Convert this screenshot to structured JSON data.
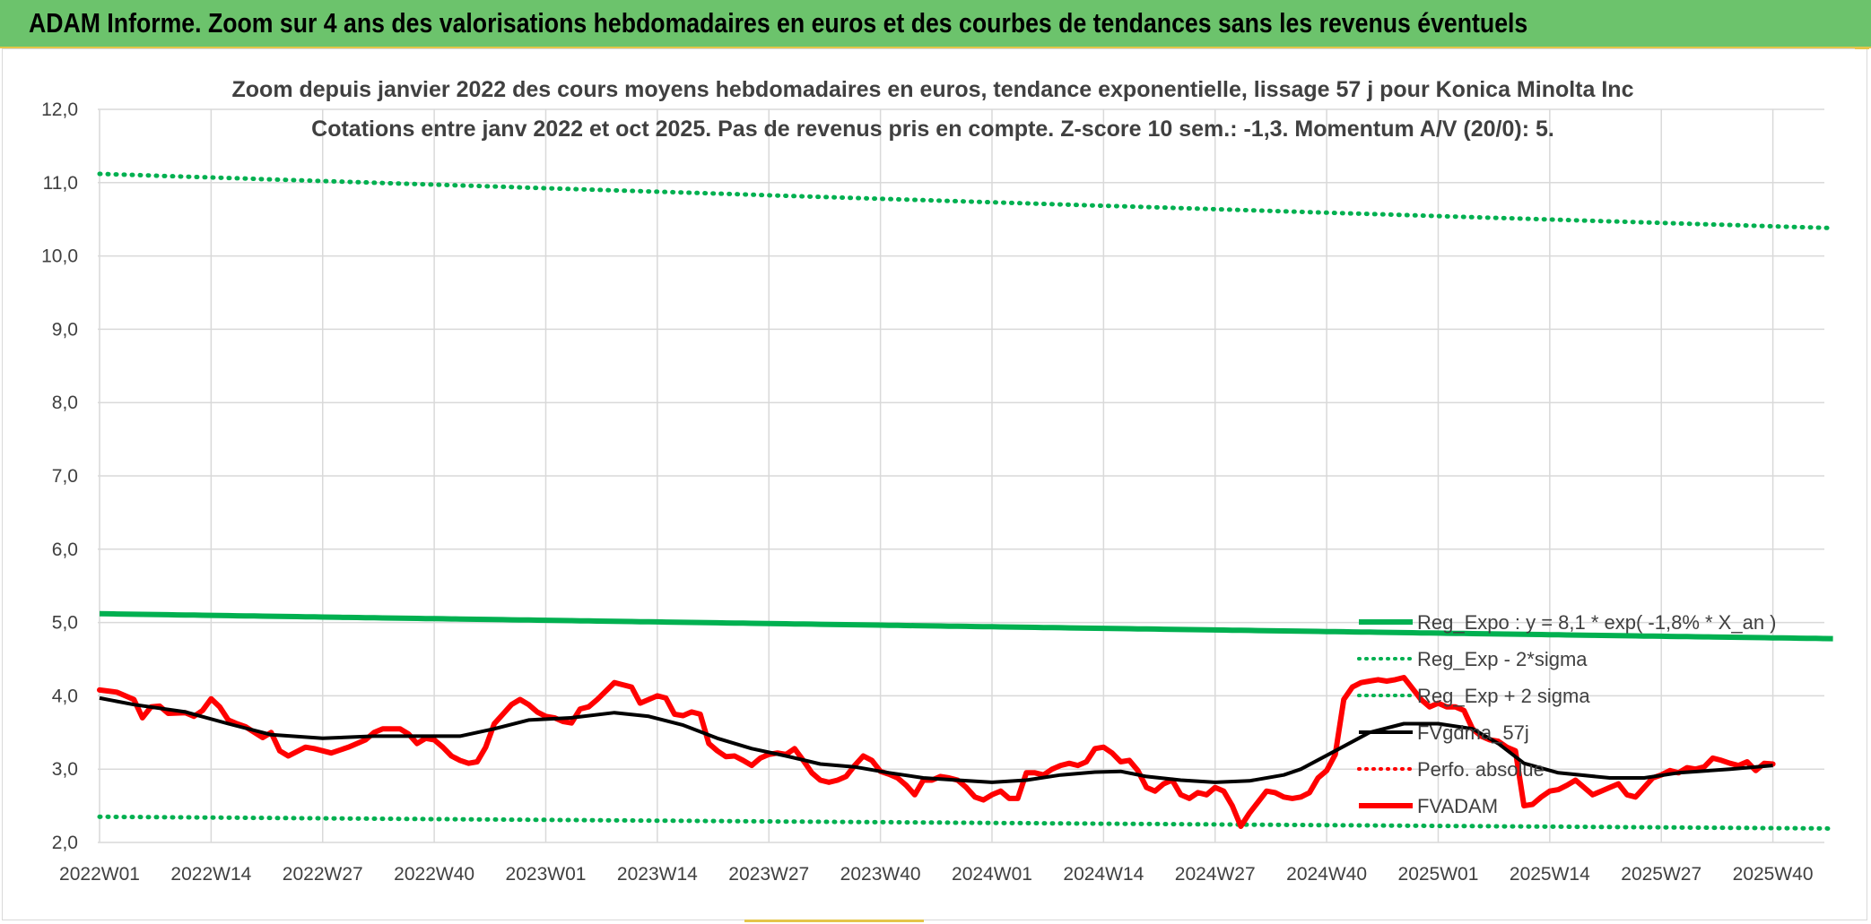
{
  "banner": {
    "title": "ADAM Informe. Zoom sur 4 ans des valorisations hebdomadaires en euros et des courbes de tendances sans les revenus éventuels"
  },
  "chart_data": {
    "type": "line",
    "title_line1": "Zoom depuis janvier 2022 des cours moyens hebdomadaires en euros, tendance exponentielle, lissage 57 j pour Konica Minolta Inc",
    "title_line2": "Cotations entre janv 2022 et oct 2025. Pas de revenus pris en compte. Z-score 10 sem.: -1,3. Momentum A/V (20/0): 5.",
    "ylim": [
      2.0,
      12.0
    ],
    "ytick_values": [
      2,
      3,
      4,
      5,
      6,
      7,
      8,
      9,
      10,
      11,
      12
    ],
    "ytick_labels": [
      "2,0",
      "3,0",
      "4,0",
      "5,0",
      "6,0",
      "7,0",
      "8,0",
      "9,0",
      "10,0",
      "11,0",
      "12,0"
    ],
    "x_categories": [
      "2022W01",
      "2022W14",
      "2022W27",
      "2022W40",
      "2023W01",
      "2023W14",
      "2023W27",
      "2023W40",
      "2024W01",
      "2024W14",
      "2024W27",
      "2024W40",
      "2025W01",
      "2025W14",
      "2025W27",
      "2025W40"
    ],
    "x_tick_index": [
      0,
      13,
      26,
      39,
      52,
      65,
      78,
      91,
      104,
      117,
      130,
      143,
      156,
      169,
      182,
      195
    ],
    "n_points": 202,
    "legend": [
      {
        "key": "regexpo",
        "label": "Reg_Expo : y = 8,1 * exp( -1,8% *  X_an )"
      },
      {
        "key": "minus2",
        "label": "Reg_Exp - 2*sigma"
      },
      {
        "key": "plus2",
        "label": "Reg_Exp + 2 sigma"
      },
      {
        "key": "gdma",
        "label": "FVgdma_57j"
      },
      {
        "key": "perfo",
        "label": "Perfo. absolue"
      },
      {
        "key": "fvadam",
        "label": "FVADAM"
      }
    ],
    "colors": {
      "regexpo": "#00b050",
      "minus2": "#00b050",
      "plus2": "#00b050",
      "gdma": "#000000",
      "perfo": "#ff0000",
      "fvadam": "#ff0000",
      "grid": "#d9d9d9",
      "axis_text": "#404040",
      "title_text": "#404040"
    },
    "series": {
      "regexpo": {
        "name": "Reg_Expo",
        "start": 5.12,
        "end": 4.78
      },
      "plus2": {
        "name": "Reg_Exp + 2 sigma",
        "start": 11.12,
        "end": 10.38
      },
      "minus2": {
        "name": "Reg_Exp - 2*sigma",
        "start": 2.35,
        "end": 2.19
      },
      "fvadam": {
        "name": "FVADAM",
        "anchors": [
          [
            0,
            4.08
          ],
          [
            2,
            4.05
          ],
          [
            4,
            3.95
          ],
          [
            5,
            3.7
          ],
          [
            6,
            3.85
          ],
          [
            7,
            3.86
          ],
          [
            8,
            3.76
          ],
          [
            10,
            3.77
          ],
          [
            11,
            3.72
          ],
          [
            12,
            3.8
          ],
          [
            13,
            3.96
          ],
          [
            14,
            3.85
          ],
          [
            15,
            3.67
          ],
          [
            16,
            3.62
          ],
          [
            17,
            3.58
          ],
          [
            19,
            3.43
          ],
          [
            20,
            3.5
          ],
          [
            21,
            3.25
          ],
          [
            22,
            3.18
          ],
          [
            24,
            3.3
          ],
          [
            25,
            3.28
          ],
          [
            27,
            3.22
          ],
          [
            29,
            3.3
          ],
          [
            31,
            3.4
          ],
          [
            32,
            3.5
          ],
          [
            33,
            3.55
          ],
          [
            35,
            3.55
          ],
          [
            36,
            3.48
          ],
          [
            37,
            3.35
          ],
          [
            38,
            3.42
          ],
          [
            39,
            3.4
          ],
          [
            40,
            3.3
          ],
          [
            41,
            3.18
          ],
          [
            42,
            3.12
          ],
          [
            43,
            3.08
          ],
          [
            44,
            3.1
          ],
          [
            45,
            3.3
          ],
          [
            46,
            3.62
          ],
          [
            47,
            3.75
          ],
          [
            48,
            3.88
          ],
          [
            49,
            3.95
          ],
          [
            50,
            3.88
          ],
          [
            51,
            3.78
          ],
          [
            52,
            3.72
          ],
          [
            53,
            3.7
          ],
          [
            54,
            3.65
          ],
          [
            55,
            3.63
          ],
          [
            56,
            3.82
          ],
          [
            57,
            3.85
          ],
          [
            58,
            3.95
          ],
          [
            60,
            4.18
          ],
          [
            61,
            4.15
          ],
          [
            62,
            4.12
          ],
          [
            63,
            3.9
          ],
          [
            64,
            3.95
          ],
          [
            65,
            4.0
          ],
          [
            66,
            3.97
          ],
          [
            67,
            3.75
          ],
          [
            68,
            3.73
          ],
          [
            69,
            3.78
          ],
          [
            70,
            3.75
          ],
          [
            71,
            3.35
          ],
          [
            72,
            3.25
          ],
          [
            73,
            3.17
          ],
          [
            74,
            3.18
          ],
          [
            75,
            3.12
          ],
          [
            76,
            3.05
          ],
          [
            77,
            3.15
          ],
          [
            78,
            3.2
          ],
          [
            79,
            3.22
          ],
          [
            80,
            3.2
          ],
          [
            81,
            3.28
          ],
          [
            82,
            3.12
          ],
          [
            83,
            2.95
          ],
          [
            84,
            2.85
          ],
          [
            85,
            2.82
          ],
          [
            86,
            2.85
          ],
          [
            87,
            2.9
          ],
          [
            88,
            3.05
          ],
          [
            89,
            3.18
          ],
          [
            90,
            3.12
          ],
          [
            91,
            2.97
          ],
          [
            92,
            2.93
          ],
          [
            93,
            2.88
          ],
          [
            94,
            2.78
          ],
          [
            95,
            2.65
          ],
          [
            96,
            2.85
          ],
          [
            97,
            2.85
          ],
          [
            98,
            2.9
          ],
          [
            99,
            2.88
          ],
          [
            100,
            2.85
          ],
          [
            101,
            2.75
          ],
          [
            102,
            2.62
          ],
          [
            103,
            2.58
          ],
          [
            104,
            2.65
          ],
          [
            105,
            2.7
          ],
          [
            106,
            2.6
          ],
          [
            107,
            2.6
          ],
          [
            108,
            2.95
          ],
          [
            109,
            2.95
          ],
          [
            110,
            2.92
          ],
          [
            111,
            3.0
          ],
          [
            112,
            3.05
          ],
          [
            113,
            3.08
          ],
          [
            114,
            3.05
          ],
          [
            115,
            3.1
          ],
          [
            116,
            3.28
          ],
          [
            117,
            3.3
          ],
          [
            118,
            3.22
          ],
          [
            119,
            3.1
          ],
          [
            120,
            3.12
          ],
          [
            121,
            2.98
          ],
          [
            122,
            2.75
          ],
          [
            123,
            2.7
          ],
          [
            124,
            2.8
          ],
          [
            125,
            2.85
          ],
          [
            126,
            2.65
          ],
          [
            127,
            2.6
          ],
          [
            128,
            2.68
          ],
          [
            129,
            2.65
          ],
          [
            130,
            2.75
          ],
          [
            131,
            2.7
          ],
          [
            132,
            2.5
          ],
          [
            133,
            2.22
          ],
          [
            134,
            2.4
          ],
          [
            135,
            2.55
          ],
          [
            136,
            2.7
          ],
          [
            137,
            2.68
          ],
          [
            138,
            2.62
          ],
          [
            139,
            2.6
          ],
          [
            140,
            2.62
          ],
          [
            141,
            2.68
          ],
          [
            142,
            2.88
          ],
          [
            143,
            2.98
          ],
          [
            144,
            3.2
          ],
          [
            145,
            3.95
          ],
          [
            146,
            4.12
          ],
          [
            147,
            4.18
          ],
          [
            148,
            4.2
          ],
          [
            149,
            4.22
          ],
          [
            150,
            4.2
          ],
          [
            151,
            4.22
          ],
          [
            152,
            4.25
          ],
          [
            153,
            4.1
          ],
          [
            154,
            3.95
          ],
          [
            155,
            3.85
          ],
          [
            156,
            3.9
          ],
          [
            157,
            3.85
          ],
          [
            158,
            3.85
          ],
          [
            159,
            3.8
          ],
          [
            160,
            3.55
          ],
          [
            161,
            3.45
          ],
          [
            162,
            3.4
          ],
          [
            163,
            3.38
          ],
          [
            164,
            3.3
          ],
          [
            165,
            3.25
          ],
          [
            166,
            2.5
          ],
          [
            167,
            2.52
          ],
          [
            168,
            2.62
          ],
          [
            169,
            2.7
          ],
          [
            170,
            2.72
          ],
          [
            171,
            2.78
          ],
          [
            172,
            2.85
          ],
          [
            173,
            2.75
          ],
          [
            174,
            2.65
          ],
          [
            175,
            2.7
          ],
          [
            176,
            2.75
          ],
          [
            177,
            2.8
          ],
          [
            178,
            2.65
          ],
          [
            179,
            2.62
          ],
          [
            180,
            2.75
          ],
          [
            181,
            2.88
          ],
          [
            182,
            2.92
          ],
          [
            183,
            2.98
          ],
          [
            184,
            2.95
          ],
          [
            185,
            3.02
          ],
          [
            186,
            3.0
          ],
          [
            187,
            3.03
          ],
          [
            188,
            3.15
          ],
          [
            189,
            3.12
          ],
          [
            190,
            3.08
          ],
          [
            191,
            3.05
          ],
          [
            192,
            3.1
          ],
          [
            193,
            2.98
          ],
          [
            194,
            3.08
          ],
          [
            195,
            3.07
          ]
        ]
      },
      "gdma": {
        "name": "FVgdma_57j",
        "anchors": [
          [
            0,
            3.97
          ],
          [
            4,
            3.88
          ],
          [
            10,
            3.78
          ],
          [
            15,
            3.62
          ],
          [
            20,
            3.47
          ],
          [
            26,
            3.42
          ],
          [
            32,
            3.45
          ],
          [
            38,
            3.45
          ],
          [
            42,
            3.45
          ],
          [
            46,
            3.55
          ],
          [
            50,
            3.67
          ],
          [
            55,
            3.7
          ],
          [
            60,
            3.77
          ],
          [
            64,
            3.72
          ],
          [
            68,
            3.6
          ],
          [
            72,
            3.42
          ],
          [
            76,
            3.28
          ],
          [
            80,
            3.18
          ],
          [
            84,
            3.07
          ],
          [
            88,
            3.03
          ],
          [
            92,
            2.95
          ],
          [
            96,
            2.88
          ],
          [
            100,
            2.85
          ],
          [
            104,
            2.82
          ],
          [
            108,
            2.85
          ],
          [
            112,
            2.92
          ],
          [
            116,
            2.96
          ],
          [
            119,
            2.97
          ],
          [
            122,
            2.9
          ],
          [
            126,
            2.85
          ],
          [
            130,
            2.82
          ],
          [
            134,
            2.84
          ],
          [
            138,
            2.92
          ],
          [
            140,
            3.0
          ],
          [
            144,
            3.25
          ],
          [
            148,
            3.5
          ],
          [
            152,
            3.62
          ],
          [
            156,
            3.62
          ],
          [
            160,
            3.55
          ],
          [
            163,
            3.35
          ],
          [
            166,
            3.08
          ],
          [
            170,
            2.95
          ],
          [
            176,
            2.88
          ],
          [
            180,
            2.88
          ],
          [
            184,
            2.95
          ],
          [
            190,
            3.0
          ],
          [
            195,
            3.05
          ]
        ]
      }
    }
  }
}
